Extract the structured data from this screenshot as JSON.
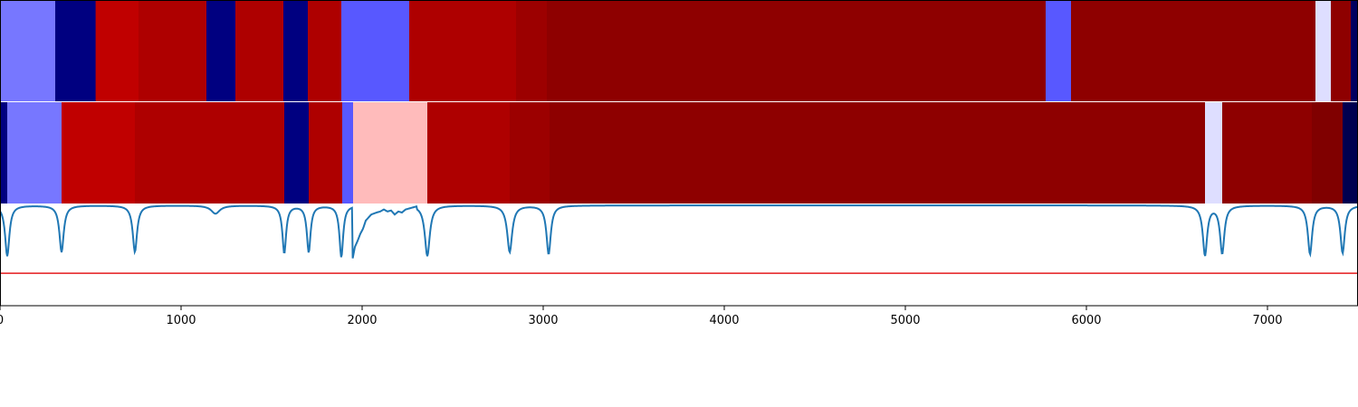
{
  "chart_data": {
    "type": "heatmap",
    "x_range": [
      0,
      7500
    ],
    "x_ticks": [
      0,
      1000,
      2000,
      3000,
      4000,
      5000,
      6000,
      7000
    ],
    "x_tick_labels": [
      "0",
      "1000",
      "2000",
      "3000",
      "4000",
      "5000",
      "6000",
      "7000"
    ],
    "colormap": "seismic",
    "segment_tracks": [
      {
        "segments": [
          {
            "start": 0,
            "end": 305,
            "color": "#7777ff"
          },
          {
            "start": 305,
            "end": 528,
            "color": "#000080"
          },
          {
            "start": 528,
            "end": 765,
            "color": "#c00000"
          },
          {
            "start": 765,
            "end": 1140,
            "color": "#ae0000"
          },
          {
            "start": 1140,
            "end": 1300,
            "color": "#000080"
          },
          {
            "start": 1300,
            "end": 1565,
            "color": "#ae0000"
          },
          {
            "start": 1565,
            "end": 1700,
            "color": "#000080"
          },
          {
            "start": 1700,
            "end": 1885,
            "color": "#ae0000"
          },
          {
            "start": 1885,
            "end": 2260,
            "color": "#5858ff"
          },
          {
            "start": 2260,
            "end": 2850,
            "color": "#ae0000"
          },
          {
            "start": 2850,
            "end": 3020,
            "color": "#9c0000"
          },
          {
            "start": 3020,
            "end": 5775,
            "color": "#8e0000"
          },
          {
            "start": 5775,
            "end": 5915,
            "color": "#5858ff"
          },
          {
            "start": 5915,
            "end": 7265,
            "color": "#8e0000"
          },
          {
            "start": 7265,
            "end": 7350,
            "color": "#dedeff"
          },
          {
            "start": 7350,
            "end": 7460,
            "color": "#8e0000"
          },
          {
            "start": 7460,
            "end": 7500,
            "color": "#000060"
          }
        ]
      },
      {
        "segments": [
          {
            "start": 0,
            "end": 40,
            "color": "#000080"
          },
          {
            "start": 40,
            "end": 340,
            "color": "#7777ff"
          },
          {
            "start": 340,
            "end": 745,
            "color": "#c00000"
          },
          {
            "start": 745,
            "end": 1570,
            "color": "#ae0000"
          },
          {
            "start": 1570,
            "end": 1705,
            "color": "#000080"
          },
          {
            "start": 1705,
            "end": 1890,
            "color": "#ae0000"
          },
          {
            "start": 1890,
            "end": 1950,
            "color": "#5858ff"
          },
          {
            "start": 1950,
            "end": 2360,
            "color": "#ffbbbb"
          },
          {
            "start": 2360,
            "end": 2815,
            "color": "#ae0000"
          },
          {
            "start": 2815,
            "end": 3035,
            "color": "#9c0000"
          },
          {
            "start": 3035,
            "end": 6655,
            "color": "#8e0000"
          },
          {
            "start": 6655,
            "end": 6750,
            "color": "#dedeff"
          },
          {
            "start": 6750,
            "end": 7245,
            "color": "#8e0000"
          },
          {
            "start": 7245,
            "end": 7415,
            "color": "#800000"
          },
          {
            "start": 7415,
            "end": 7500,
            "color": "#000050"
          }
        ]
      }
    ],
    "line_panel": {
      "y_range": [
        0,
        1
      ],
      "threshold": {
        "y": 0.32,
        "color": "#e41a1c"
      },
      "line_color": "#1f77b4",
      "baseline": 0.99,
      "dips": [
        {
          "x": 40,
          "depth": 0.5,
          "width": 35
        },
        {
          "x": 340,
          "depth": 0.46,
          "width": 35
        },
        {
          "x": 745,
          "depth": 0.46,
          "width": 35
        },
        {
          "x": 1190,
          "depth": 0.08,
          "width": 70
        },
        {
          "x": 1570,
          "depth": 0.47,
          "width": 30
        },
        {
          "x": 1705,
          "depth": 0.46,
          "width": 30
        },
        {
          "x": 1885,
          "depth": 0.51,
          "width": 30
        },
        {
          "x": 2360,
          "depth": 0.5,
          "width": 40
        },
        {
          "x": 2815,
          "depth": 0.46,
          "width": 40
        },
        {
          "x": 3030,
          "depth": 0.48,
          "width": 35
        },
        {
          "x": 6655,
          "depth": 0.49,
          "width": 35
        },
        {
          "x": 6750,
          "depth": 0.47,
          "width": 35
        },
        {
          "x": 7235,
          "depth": 0.48,
          "width": 35
        },
        {
          "x": 7415,
          "depth": 0.47,
          "width": 35
        }
      ],
      "noisy_region": {
        "x": [
          1945,
          1960,
          1975,
          1990,
          2005,
          2020,
          2035,
          2050,
          2065,
          2080,
          2100,
          2120,
          2140,
          2160,
          2180,
          2200,
          2220,
          2240,
          2260,
          2280,
          2300
        ],
        "y": [
          0.44,
          0.58,
          0.64,
          0.71,
          0.76,
          0.84,
          0.87,
          0.9,
          0.91,
          0.92,
          0.93,
          0.95,
          0.93,
          0.94,
          0.9,
          0.93,
          0.92,
          0.95,
          0.96,
          0.97,
          0.98
        ]
      }
    }
  }
}
